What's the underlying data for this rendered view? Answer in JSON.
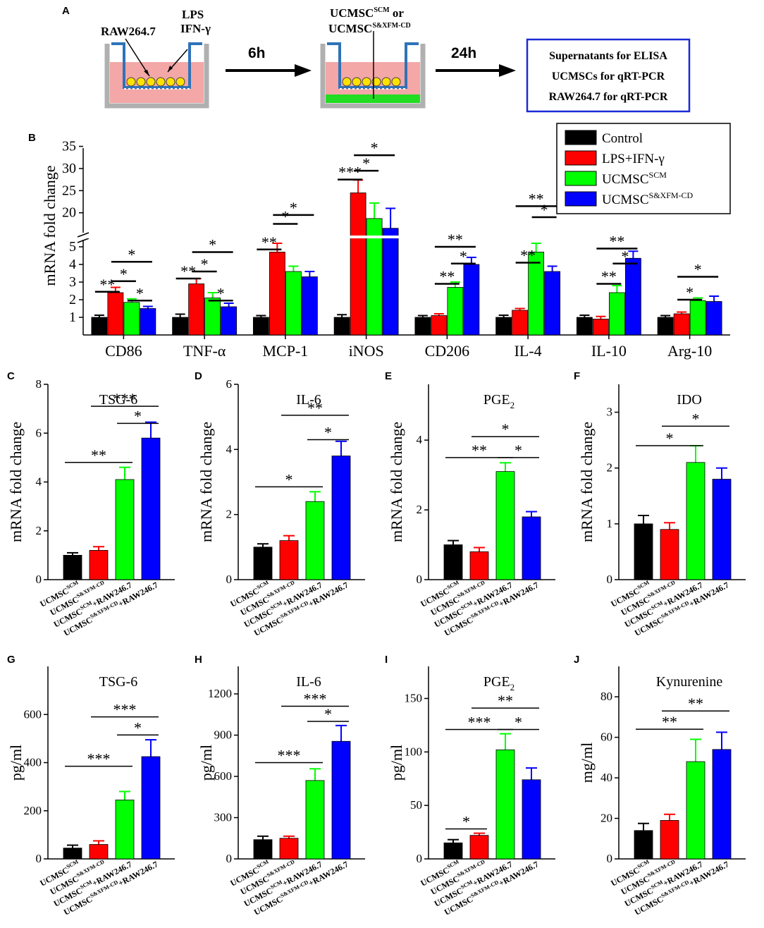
{
  "colors": {
    "control": "#000000",
    "lps": "#ff0000",
    "scm": "#00ff00",
    "xfm": "#0000ff",
    "protocol_box_border": "#1a2ad6",
    "medium": "#f3a7a7",
    "transwell": "#2f73b8",
    "well": "#b0b0b0",
    "cell": "#ffe100",
    "coating": "#22dd22"
  },
  "panel_a": {
    "label": "A",
    "well1_cell_label": "RAW264.7",
    "well1_stim_label_1": "LPS",
    "well1_stim_label_2": "IFN-γ",
    "arrow1_label": "6h",
    "well2_label_1": "UCMSC",
    "well2_label_1_sup": "SCM",
    "well2_label_1_or": " or",
    "well2_label_2": "UCMSC",
    "well2_label_2_sup": "S&XFM-CD",
    "arrow2_label": "24h",
    "protocol_lines": [
      "Supernatants for ELISA",
      "UCMSCs for qRT-PCR",
      "RAW264.7 for qRT-PCR"
    ]
  },
  "panel_b": {
    "label": "B",
    "legend": [
      {
        "label": "Control",
        "sup": "",
        "color_key": "control"
      },
      {
        "label": "LPS+IFN-γ",
        "sup": "",
        "color_key": "lps"
      },
      {
        "label": "UCMSC",
        "sup": "SCM",
        "color_key": "scm"
      },
      {
        "label": "UCMSC",
        "sup": "S&XFM-CD",
        "color_key": "xfm"
      }
    ]
  },
  "chart_data": [
    {
      "id": "B",
      "type": "bar",
      "ylabel": "mRNA fold change",
      "axis_break": {
        "lower": [
          0,
          5.4
        ],
        "upper": [
          15.5,
          37
        ]
      },
      "yticks_lower": [
        1,
        2,
        3,
        4,
        5
      ],
      "yticks_upper": [
        20,
        25,
        30,
        35
      ],
      "categories": [
        "CD86",
        "TNF-α",
        "MCP-1",
        "iNOS",
        "CD206",
        "IL-4",
        "IL-10",
        "Arg-10"
      ],
      "series": [
        {
          "name": "Control",
          "color_key": "control",
          "values": [
            1.0,
            1.0,
            1.0,
            1.0,
            1.0,
            1.0,
            1.0,
            1.0
          ],
          "errors": [
            0.12,
            0.18,
            0.1,
            0.15,
            0.1,
            0.12,
            0.12,
            0.1
          ]
        },
        {
          "name": "LPS+IFN-γ",
          "color_key": "lps",
          "values": [
            2.4,
            2.9,
            4.7,
            24.5,
            1.1,
            1.4,
            0.9,
            1.2
          ],
          "errors": [
            0.3,
            0.3,
            0.5,
            2.9,
            0.1,
            0.1,
            0.15,
            0.1
          ]
        },
        {
          "name": "UCMSC SCM",
          "color_key": "scm",
          "values": [
            1.85,
            2.1,
            3.6,
            18.7,
            2.7,
            4.7,
            2.4,
            1.95
          ],
          "errors": [
            0.2,
            0.3,
            0.3,
            3.5,
            0.3,
            0.5,
            0.4,
            0.15
          ]
        },
        {
          "name": "UCMSC S&XFM-CD",
          "color_key": "xfm",
          "values": [
            1.5,
            1.6,
            3.3,
            16.5,
            4.0,
            3.6,
            4.35,
            1.9
          ],
          "errors": [
            0.12,
            0.2,
            0.3,
            4.5,
            0.4,
            0.3,
            0.4,
            0.3
          ]
        }
      ],
      "significance": [
        {
          "cat": 0,
          "from": 0,
          "to": 1,
          "y": 2.45,
          "text": "**"
        },
        {
          "cat": 0,
          "from": 1,
          "to": 2,
          "y": 3.05,
          "text": "*"
        },
        {
          "cat": 0,
          "from": 2,
          "to": 3,
          "y": 1.95,
          "text": "*"
        },
        {
          "cat": 0,
          "from": 1,
          "to": 3,
          "y": 4.15,
          "text": "*"
        },
        {
          "cat": 1,
          "from": 0,
          "to": 1,
          "y": 3.2,
          "text": "**"
        },
        {
          "cat": 1,
          "from": 1,
          "to": 2,
          "y": 3.6,
          "text": "*"
        },
        {
          "cat": 1,
          "from": 2,
          "to": 3,
          "y": 1.95,
          "text": "*"
        },
        {
          "cat": 1,
          "from": 1,
          "to": 3,
          "y": 4.7,
          "text": "*"
        },
        {
          "cat": 2,
          "from": 0,
          "to": 1,
          "y": 4.85,
          "text": "**"
        },
        {
          "cat": 2,
          "from": 1,
          "to": 2,
          "y": 17.5,
          "text": "*"
        },
        {
          "cat": 2,
          "from": 1,
          "to": 3,
          "y": 19.5,
          "text": "*"
        },
        {
          "cat": 3,
          "from": 0,
          "to": 1,
          "y": 27.5,
          "text": "***"
        },
        {
          "cat": 3,
          "from": 1,
          "to": 2,
          "y": 29.5,
          "text": "*"
        },
        {
          "cat": 3,
          "from": 1,
          "to": 3,
          "y": 33.0,
          "text": "*"
        },
        {
          "cat": 4,
          "from": 1,
          "to": 2,
          "y": 2.9,
          "text": "**"
        },
        {
          "cat": 4,
          "from": 2,
          "to": 3,
          "y": 4.05,
          "text": "*"
        },
        {
          "cat": 4,
          "from": 1,
          "to": 3,
          "y": 5.0,
          "text": "**"
        },
        {
          "cat": 5,
          "from": 1,
          "to": 2,
          "y": 4.1,
          "text": "**"
        },
        {
          "cat": 5,
          "from": 2,
          "to": 3,
          "y": 19.0,
          "text": "*"
        },
        {
          "cat": 5,
          "from": 1,
          "to": 3,
          "y": 21.5,
          "text": "**"
        },
        {
          "cat": 6,
          "from": 1,
          "to": 2,
          "y": 2.9,
          "text": "**"
        },
        {
          "cat": 6,
          "from": 2,
          "to": 3,
          "y": 4.05,
          "text": "*"
        },
        {
          "cat": 6,
          "from": 1,
          "to": 3,
          "y": 4.9,
          "text": "**"
        },
        {
          "cat": 7,
          "from": 1,
          "to": 2,
          "y": 2.0,
          "text": "*"
        },
        {
          "cat": 7,
          "from": 1,
          "to": 3,
          "y": 3.3,
          "text": "*"
        }
      ]
    },
    {
      "id": "C",
      "type": "bar",
      "title": "TSG-6",
      "title_sub": "",
      "ylabel": "mRNA fold change",
      "ylim": [
        0,
        8
      ],
      "yticks": [
        0,
        2,
        4,
        6,
        8
      ],
      "categories": [
        {
          "base": "UCMSC",
          "sup": "SCM",
          "suffix": ""
        },
        {
          "base": "UCMSC",
          "sup": "S&XFM-CD",
          "suffix": ""
        },
        {
          "base": "UCMSC",
          "sup": "SCM",
          "suffix": "+RAW246.7"
        },
        {
          "base": "UCMSC",
          "sup": "S&XFM-CD",
          "suffix": "+RAW246.7"
        }
      ],
      "color_keys": [
        "control",
        "lps",
        "scm",
        "xfm"
      ],
      "values": [
        1.0,
        1.2,
        4.1,
        5.8
      ],
      "errors": [
        0.1,
        0.15,
        0.5,
        0.65
      ],
      "significance": [
        {
          "from": 0,
          "to": 2,
          "y": 4.8,
          "text": "**"
        },
        {
          "from": 2,
          "to": 3,
          "y": 6.4,
          "text": "*"
        },
        {
          "from": 1,
          "to": 3,
          "y": 7.1,
          "text": "***"
        }
      ]
    },
    {
      "id": "D",
      "type": "bar",
      "title": "IL-6",
      "title_sub": "",
      "ylabel": "mRNA fold change",
      "ylim": [
        0,
        6
      ],
      "yticks": [
        0,
        2,
        4,
        6
      ],
      "categories": [
        {
          "base": "UCMSC",
          "sup": "SCM",
          "suffix": ""
        },
        {
          "base": "UCMSC",
          "sup": "S&XFM-CD",
          "suffix": ""
        },
        {
          "base": "UCMSC",
          "sup": "SCM",
          "suffix": "+RAW246.7"
        },
        {
          "base": "UCMSC",
          "sup": "S&XFM-CD",
          "suffix": "+RAW246.7"
        }
      ],
      "color_keys": [
        "control",
        "lps",
        "scm",
        "xfm"
      ],
      "values": [
        1.0,
        1.2,
        2.4,
        3.8
      ],
      "errors": [
        0.1,
        0.15,
        0.3,
        0.45
      ],
      "significance": [
        {
          "from": 0,
          "to": 2,
          "y": 2.85,
          "text": "*"
        },
        {
          "from": 2,
          "to": 3,
          "y": 4.3,
          "text": "*"
        },
        {
          "from": 1,
          "to": 3,
          "y": 5.05,
          "text": "**"
        }
      ]
    },
    {
      "id": "E",
      "type": "bar",
      "title": "PGE",
      "title_sub": "2",
      "ylabel": "mRNA fold change",
      "ylim": [
        0,
        5.6
      ],
      "yticks": [
        0,
        2,
        4
      ],
      "categories": [
        {
          "base": "UCMSC",
          "sup": "SCM",
          "suffix": ""
        },
        {
          "base": "UCMSC",
          "sup": "S&XFM-CD",
          "suffix": ""
        },
        {
          "base": "UCMSC",
          "sup": "SCM",
          "suffix": "+RAW246.7"
        },
        {
          "base": "UCMSC",
          "sup": "S&XFM-CD",
          "suffix": "+RAW246.7"
        }
      ],
      "color_keys": [
        "control",
        "lps",
        "scm",
        "xfm"
      ],
      "values": [
        1.0,
        0.8,
        3.1,
        1.8
      ],
      "errors": [
        0.12,
        0.12,
        0.25,
        0.15
      ],
      "significance": [
        {
          "from": 0,
          "to": 2,
          "y": 3.5,
          "text": "**"
        },
        {
          "from": 2,
          "to": 3,
          "y": 3.5,
          "text": "*"
        },
        {
          "from": 1,
          "to": 3,
          "y": 4.1,
          "text": "*"
        }
      ]
    },
    {
      "id": "F",
      "type": "bar",
      "title": "IDO",
      "title_sub": "",
      "ylabel": "mRNA fold change",
      "ylim": [
        0,
        3.5
      ],
      "yticks": [
        0,
        1,
        2,
        3
      ],
      "categories": [
        {
          "base": "UCMSC",
          "sup": "SCM",
          "suffix": ""
        },
        {
          "base": "UCMSC",
          "sup": "S&XFM-CD",
          "suffix": ""
        },
        {
          "base": "UCMSC",
          "sup": "SCM",
          "suffix": "+RAW246.7"
        },
        {
          "base": "UCMSC",
          "sup": "S&XFM-CD",
          "suffix": "+RAW246.7"
        }
      ],
      "color_keys": [
        "control",
        "lps",
        "scm",
        "xfm"
      ],
      "values": [
        1.0,
        0.9,
        2.1,
        1.8
      ],
      "errors": [
        0.15,
        0.12,
        0.3,
        0.2
      ],
      "significance": [
        {
          "from": 0,
          "to": 2,
          "y": 2.4,
          "text": "*"
        },
        {
          "from": 1,
          "to": 3,
          "y": 2.75,
          "text": "*"
        }
      ]
    },
    {
      "id": "G",
      "type": "bar",
      "title": "TSG-6",
      "title_sub": "",
      "ylabel": "pg/ml",
      "ylim": [
        0,
        800
      ],
      "yticks": [
        0,
        200,
        400,
        600
      ],
      "categories": [
        {
          "base": "UCMSC",
          "sup": "SCM",
          "suffix": ""
        },
        {
          "base": "UCMSC",
          "sup": "S&XFM-CD",
          "suffix": ""
        },
        {
          "base": "UCMSC",
          "sup": "SCM",
          "suffix": "+RAW246.7"
        },
        {
          "base": "UCMSC",
          "sup": "S&XFM-CD",
          "suffix": "+RAW246.7"
        }
      ],
      "color_keys": [
        "control",
        "lps",
        "scm",
        "xfm"
      ],
      "values": [
        45,
        60,
        245,
        425
      ],
      "errors": [
        12,
        15,
        35,
        70
      ],
      "significance": [
        {
          "from": 0,
          "to": 2,
          "y": 385,
          "text": "***"
        },
        {
          "from": 2,
          "to": 3,
          "y": 515,
          "text": "*"
        },
        {
          "from": 1,
          "to": 3,
          "y": 590,
          "text": "***"
        }
      ]
    },
    {
      "id": "H",
      "type": "bar",
      "title": "IL-6",
      "title_sub": "",
      "ylabel": "pg/ml",
      "ylim": [
        0,
        1400
      ],
      "yticks": [
        0,
        300,
        600,
        900,
        1200
      ],
      "categories": [
        {
          "base": "UCMSC",
          "sup": "SCM",
          "suffix": ""
        },
        {
          "base": "UCMSC",
          "sup": "S&XFM-CD",
          "suffix": ""
        },
        {
          "base": "UCMSC",
          "sup": "SCM",
          "suffix": "+RAW246.7"
        },
        {
          "base": "UCMSC",
          "sup": "S&XFM-CD",
          "suffix": "+RAW246.7"
        }
      ],
      "color_keys": [
        "control",
        "lps",
        "scm",
        "xfm"
      ],
      "values": [
        140,
        150,
        570,
        855
      ],
      "errors": [
        25,
        15,
        85,
        115
      ],
      "significance": [
        {
          "from": 0,
          "to": 2,
          "y": 700,
          "text": "***"
        },
        {
          "from": 2,
          "to": 3,
          "y": 1000,
          "text": "*"
        },
        {
          "from": 1,
          "to": 3,
          "y": 1110,
          "text": "***"
        }
      ]
    },
    {
      "id": "I",
      "type": "bar",
      "title": "PGE",
      "title_sub": "2",
      "ylabel": "pg/ml",
      "ylim": [
        0,
        180
      ],
      "yticks": [
        0,
        50,
        100,
        150
      ],
      "categories": [
        {
          "base": "UCMSC",
          "sup": "SCM",
          "suffix": ""
        },
        {
          "base": "UCMSC",
          "sup": "S&XFM-CD",
          "suffix": ""
        },
        {
          "base": "UCMSC",
          "sup": "SCM",
          "suffix": "+RAW246.7"
        },
        {
          "base": "UCMSC",
          "sup": "S&XFM-CD",
          "suffix": "+RAW246.7"
        }
      ],
      "color_keys": [
        "control",
        "lps",
        "scm",
        "xfm"
      ],
      "values": [
        15,
        22,
        102,
        74
      ],
      "errors": [
        3,
        2,
        15,
        11
      ],
      "significance": [
        {
          "from": 0,
          "to": 1,
          "y": 28,
          "text": "*"
        },
        {
          "from": 0,
          "to": 2,
          "y": 121,
          "text": "***"
        },
        {
          "from": 2,
          "to": 3,
          "y": 121,
          "text": "*"
        },
        {
          "from": 1,
          "to": 3,
          "y": 141,
          "text": "**"
        }
      ]
    },
    {
      "id": "J",
      "type": "bar",
      "title": "Kynurenine",
      "title_sub": "",
      "ylabel": "mg/ml",
      "ylim": [
        0,
        95
      ],
      "yticks": [
        0,
        20,
        40,
        60,
        80
      ],
      "categories": [
        {
          "base": "UCMSC",
          "sup": "SCM",
          "suffix": ""
        },
        {
          "base": "UCMSC",
          "sup": "S&XFM-CD",
          "suffix": ""
        },
        {
          "base": "UCMSC",
          "sup": "SCM",
          "suffix": "+RAW246.7"
        },
        {
          "base": "UCMSC",
          "sup": "S&XFM-CD",
          "suffix": "+RAW246.7"
        }
      ],
      "color_keys": [
        "control",
        "lps",
        "scm",
        "xfm"
      ],
      "values": [
        14,
        19,
        48,
        54
      ],
      "errors": [
        3.5,
        3,
        11,
        8.5
      ],
      "significance": [
        {
          "from": 0,
          "to": 2,
          "y": 64,
          "text": "**"
        },
        {
          "from": 1,
          "to": 3,
          "y": 73,
          "text": "**"
        }
      ]
    }
  ]
}
